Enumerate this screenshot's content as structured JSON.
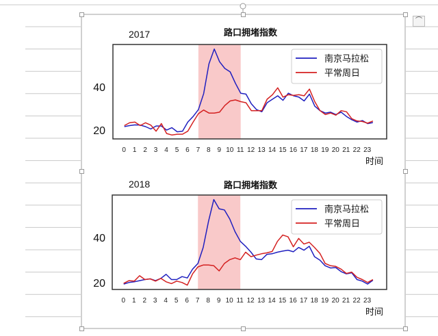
{
  "chart_data": [
    {
      "type": "line",
      "year_label": "2017",
      "title": "路口拥堵指数",
      "xlabel": "时间",
      "ylabel": "",
      "xticks": [
        0,
        1,
        2,
        3,
        4,
        5,
        6,
        7,
        8,
        9,
        10,
        11,
        12,
        13,
        14,
        15,
        16,
        17,
        18,
        19,
        20,
        21,
        22,
        23
      ],
      "yticks": [
        20,
        40
      ],
      "xlim": [
        -1.08,
        24.8
      ],
      "ylim": [
        15.9,
        59.7
      ],
      "shaded_range": [
        7,
        11
      ],
      "legend_position": "top-right",
      "x": [
        0,
        0.5,
        1,
        1.5,
        2,
        2.5,
        3,
        3.5,
        4,
        4.5,
        5,
        5.5,
        6,
        6.5,
        7,
        7.5,
        8,
        8.5,
        9,
        9.5,
        10,
        10.5,
        11,
        11.5,
        12,
        12.5,
        13,
        13.5,
        14,
        14.5,
        15,
        15.5,
        16,
        16.5,
        17,
        17.5,
        18,
        18.5,
        19,
        19.5,
        20,
        20.5,
        21,
        21.5,
        22,
        22.5,
        23,
        23.5
      ],
      "series": [
        {
          "name": "南京马拉松",
          "color": "#1f1fbf",
          "values": [
            21.6,
            22.1,
            22.4,
            22.3,
            21.6,
            20.5,
            21.9,
            21.9,
            20.0,
            21.1,
            19.2,
            19.5,
            23.7,
            26.3,
            29.5,
            36.9,
            50.7,
            57.6,
            51.7,
            48.6,
            47.0,
            41.7,
            37.1,
            36.7,
            32.2,
            29.5,
            28.5,
            32.7,
            34.3,
            35.9,
            33.8,
            37.1,
            35.9,
            35.3,
            33.5,
            36.7,
            31.1,
            29.0,
            27.9,
            28.3,
            27.2,
            28.3,
            26.3,
            24.8,
            23.7,
            24.4,
            23.0,
            23.5
          ]
        },
        {
          "name": "平常周日",
          "color": "#d42020",
          "values": [
            22.1,
            23.4,
            23.7,
            22.1,
            23.4,
            22.3,
            19.5,
            23.0,
            18.4,
            17.7,
            18.1,
            18.1,
            19.5,
            23.7,
            27.6,
            29.3,
            27.9,
            27.9,
            28.3,
            31.4,
            33.5,
            34.0,
            33.2,
            32.7,
            29.0,
            29.0,
            29.0,
            34.3,
            36.4,
            39.6,
            35.3,
            36.4,
            36.1,
            36.4,
            35.9,
            39.0,
            33.2,
            29.0,
            27.2,
            27.9,
            26.9,
            29.0,
            28.5,
            25.3,
            24.2,
            24.0,
            23.2,
            24.2
          ]
        }
      ]
    },
    {
      "type": "line",
      "year_label": "2018",
      "title": "路口拥堵指数",
      "xlabel": "时间",
      "ylabel": "",
      "xticks": [
        0,
        1,
        2,
        3,
        4,
        5,
        6,
        7,
        8,
        9,
        10,
        11,
        12,
        13,
        14,
        15,
        16,
        17,
        18,
        19,
        20,
        21,
        22,
        23
      ],
      "yticks": [
        20,
        40
      ],
      "xlim": [
        -1.08,
        24.8
      ],
      "ylim": [
        17.0,
        58.8
      ],
      "shaded_range": [
        7,
        11
      ],
      "legend_position": "top-right",
      "x": [
        0,
        0.5,
        1,
        1.5,
        2,
        2.5,
        3,
        3.5,
        4,
        4.5,
        5,
        5.5,
        6,
        6.5,
        7,
        7.5,
        8,
        8.5,
        9,
        9.5,
        10,
        10.5,
        11,
        11.5,
        12,
        12.5,
        13,
        13.5,
        14,
        14.5,
        15,
        15.5,
        16,
        16.5,
        17,
        17.5,
        18,
        18.5,
        19,
        19.5,
        20,
        20.5,
        21,
        21.5,
        22,
        22.5,
        23,
        23.5
      ],
      "series": [
        {
          "name": "南京马拉松",
          "color": "#1f1fbf",
          "values": [
            19.4,
            20.1,
            20.4,
            20.9,
            21.4,
            21.7,
            20.9,
            21.9,
            23.7,
            21.4,
            21.4,
            22.7,
            22.1,
            26.0,
            28.5,
            35.6,
            47.2,
            56.8,
            52.7,
            52.2,
            48.2,
            42.6,
            38.3,
            36.1,
            33.5,
            30.5,
            30.2,
            32.5,
            32.8,
            33.5,
            34.0,
            34.4,
            33.7,
            35.6,
            34.4,
            36.1,
            31.5,
            30.0,
            27.5,
            26.5,
            26.7,
            24.9,
            23.9,
            24.4,
            21.4,
            20.7,
            19.4,
            21.1
          ]
        },
        {
          "name": "平常周日",
          "color": "#d42020",
          "values": [
            19.7,
            20.9,
            20.7,
            23.1,
            21.4,
            21.7,
            20.7,
            21.9,
            20.4,
            19.6,
            20.7,
            20.1,
            18.9,
            23.9,
            27.0,
            27.8,
            27.8,
            27.5,
            25.2,
            28.5,
            30.2,
            31.0,
            30.2,
            33.5,
            31.5,
            32.2,
            32.8,
            33.2,
            33.8,
            38.3,
            41.1,
            40.3,
            35.9,
            39.6,
            37.1,
            37.9,
            35.6,
            33.0,
            28.5,
            27.5,
            27.2,
            26.0,
            24.1,
            24.7,
            22.4,
            21.4,
            20.1,
            21.4
          ]
        }
      ]
    }
  ],
  "colors": {
    "shade": "#f9c9c9",
    "frame": "#a0a0a0",
    "doc_lines": "#c8c8c8"
  }
}
